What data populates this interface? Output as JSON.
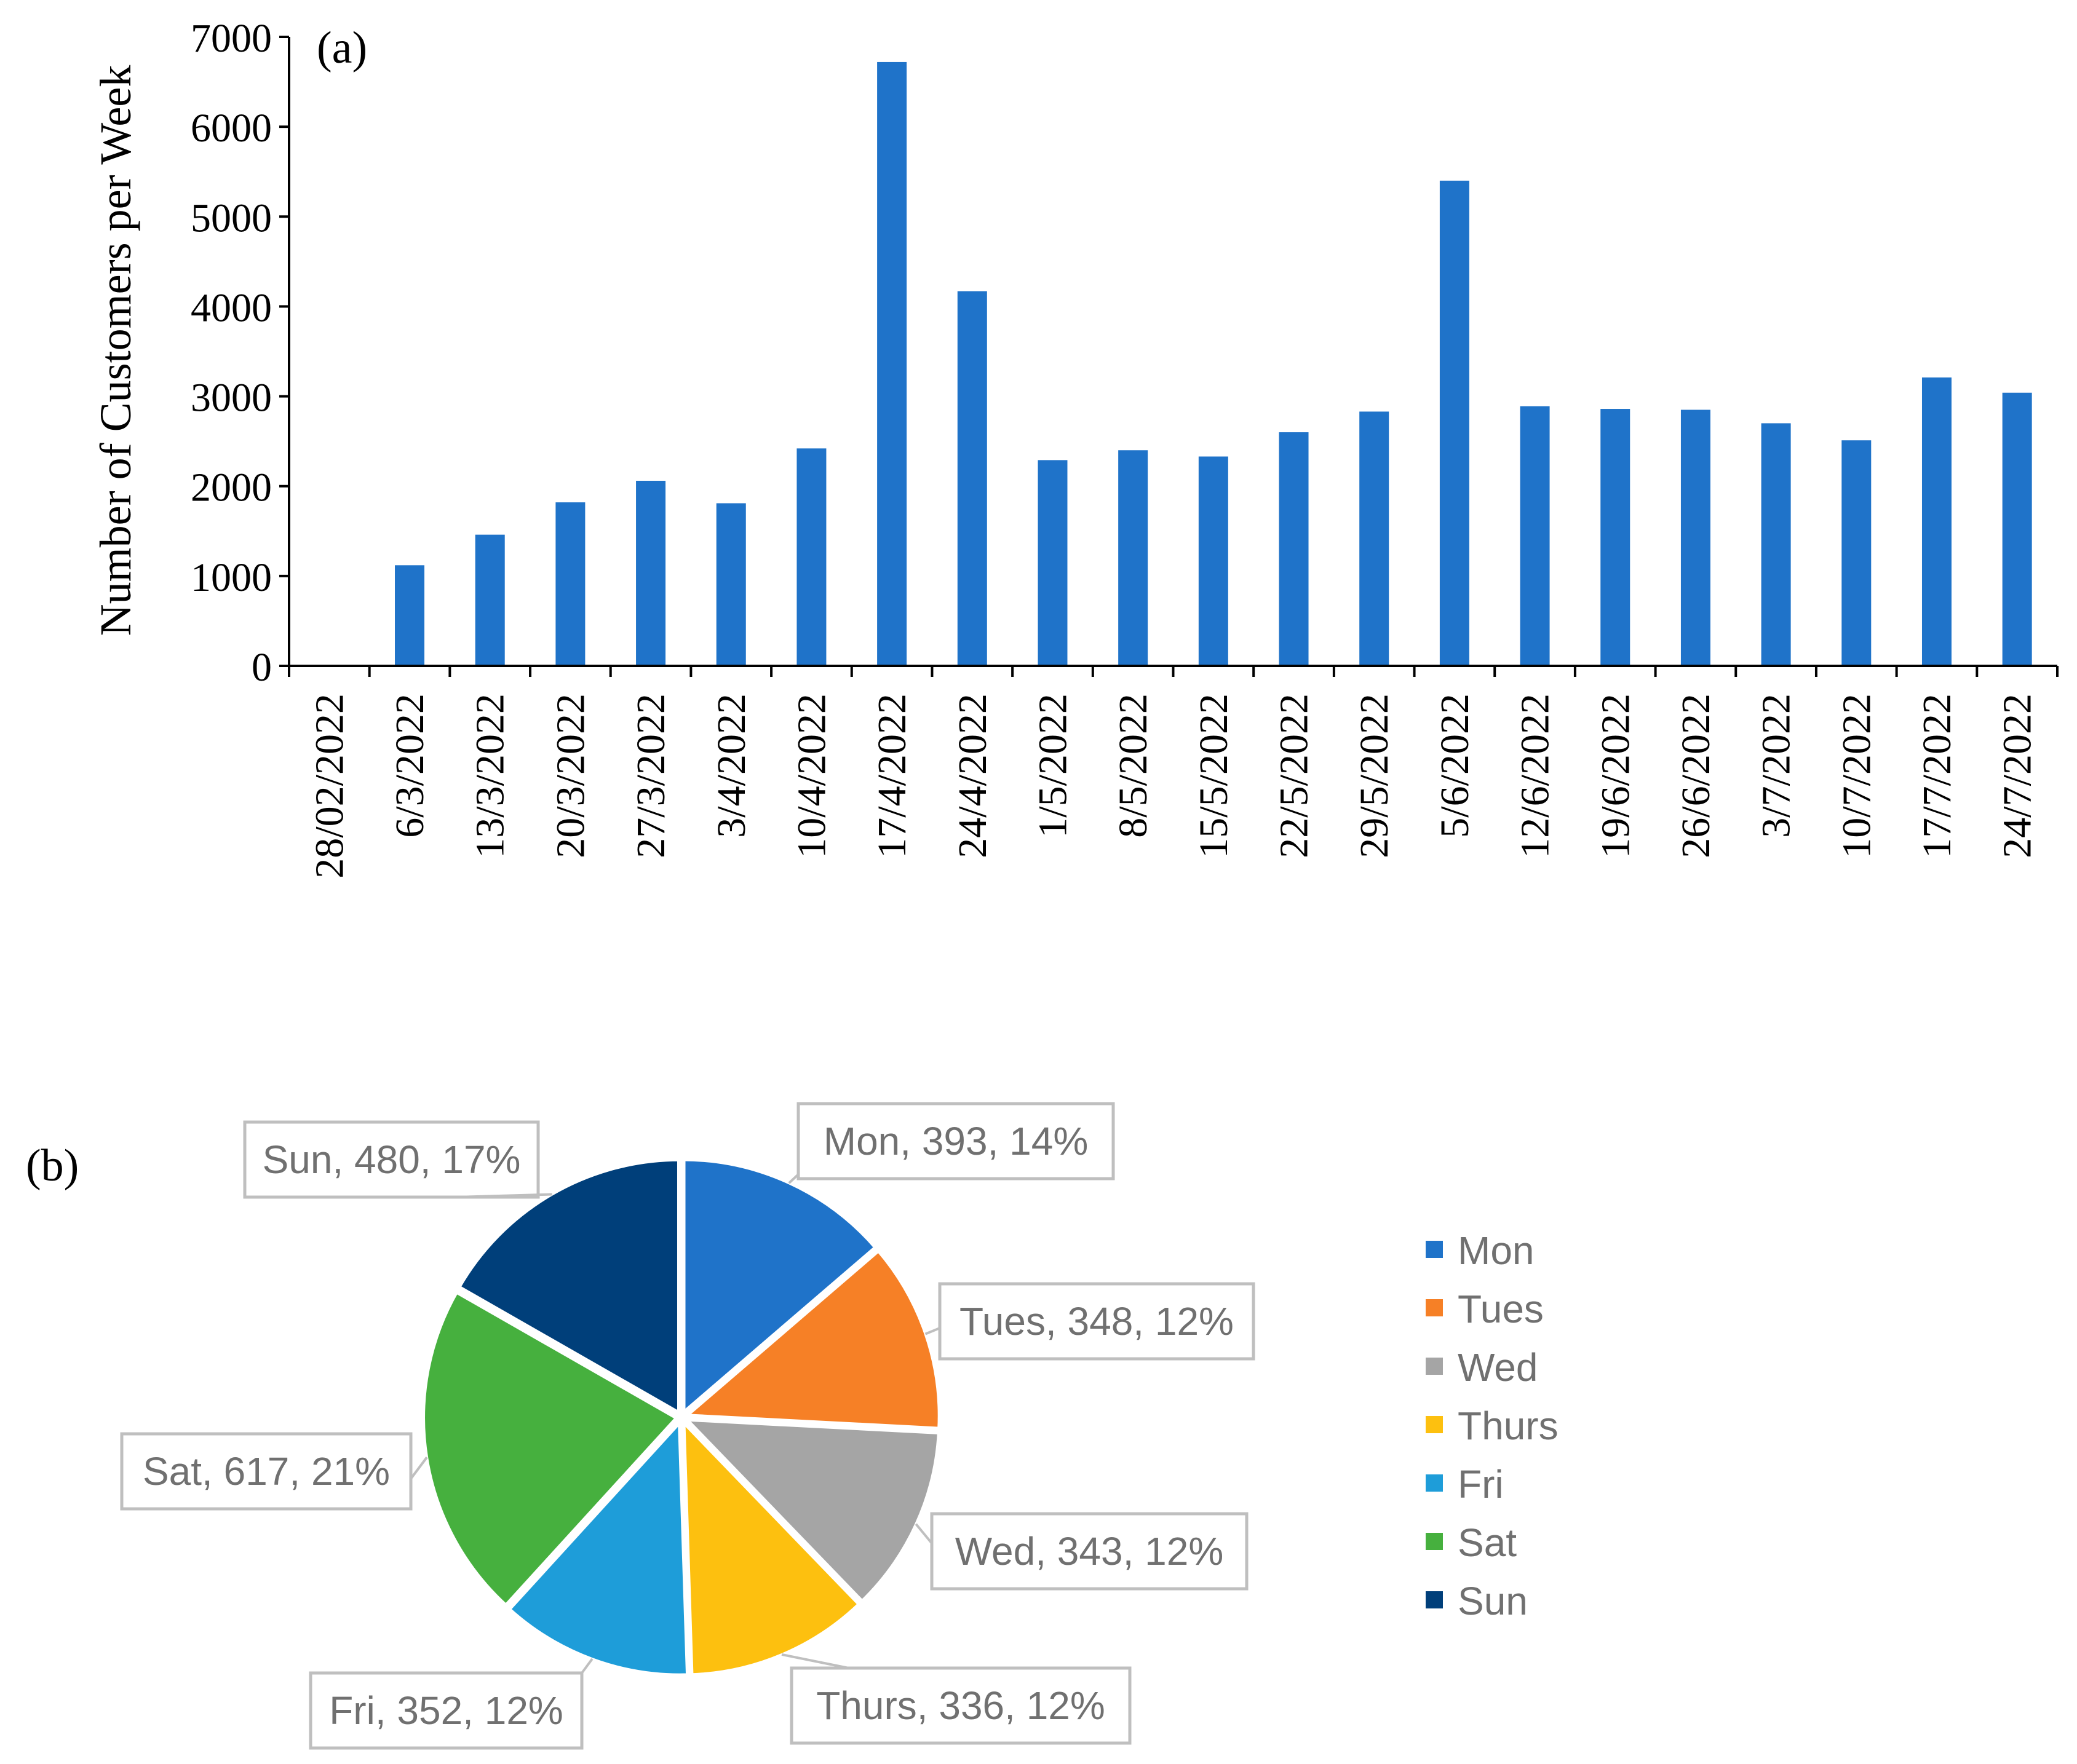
{
  "chart_data": [
    {
      "type": "bar",
      "panel_label": "(a)",
      "title": "",
      "xlabel": "",
      "ylabel": "Number of Customers per Week",
      "ylim": [
        0,
        7000
      ],
      "y_ticks": [
        "0",
        "1000",
        "2000",
        "3000",
        "4000",
        "5000",
        "6000",
        "7000"
      ],
      "grid": false,
      "color": "#1f73c9",
      "categories": [
        "28/02/2022",
        "6/3/2022",
        "13/3/2022",
        "20/3/2022",
        "27/3/2022",
        "3/4/2022",
        "10/4/2022",
        "17/4/2022",
        "24/4/2022",
        "1/5/2022",
        "8/5/2022",
        "15/5/2022",
        "22/5/2022",
        "29/5/2022",
        "5/6/2022",
        "12/6/2022",
        "19/6/2022",
        "26/6/2022",
        "3/7/2022",
        "10/7/2022",
        "17/7/2022",
        "24/7/2022"
      ],
      "values": [
        0,
        1120,
        1460,
        1820,
        2060,
        1810,
        2420,
        6720,
        4170,
        2290,
        2400,
        2330,
        2600,
        2830,
        5400,
        2890,
        2860,
        2850,
        2700,
        2510,
        3210,
        3040
      ]
    },
    {
      "type": "pie",
      "panel_label": "(b)",
      "title": "",
      "legend_position": "right",
      "slices": [
        {
          "label": "Mon",
          "value": 393,
          "percent": "14%",
          "data_label": "Mon, 393, 14%",
          "color": "#1f73c9"
        },
        {
          "label": "Tues",
          "value": 348,
          "percent": "12%",
          "data_label": "Tues, 348, 12%",
          "color": "#f68026"
        },
        {
          "label": "Wed",
          "value": 343,
          "percent": "12%",
          "data_label": "Wed, 343, 12%",
          "color": "#a5a5a5"
        },
        {
          "label": "Thurs",
          "value": 336,
          "percent": "12%",
          "data_label": "Thurs, 336, 12%",
          "color": "#fdc00f"
        },
        {
          "label": "Fri",
          "value": 352,
          "percent": "12%",
          "data_label": "Fri, 352, 12%",
          "color": "#1e9dd9"
        },
        {
          "label": "Sat",
          "value": 617,
          "percent": "21%",
          "data_label": "Sat, 617, 21%",
          "color": "#46b03e"
        },
        {
          "label": "Sun",
          "value": 480,
          "percent": "17%",
          "data_label": "Sun, 480, 17%",
          "color": "#003f7a"
        }
      ]
    }
  ]
}
